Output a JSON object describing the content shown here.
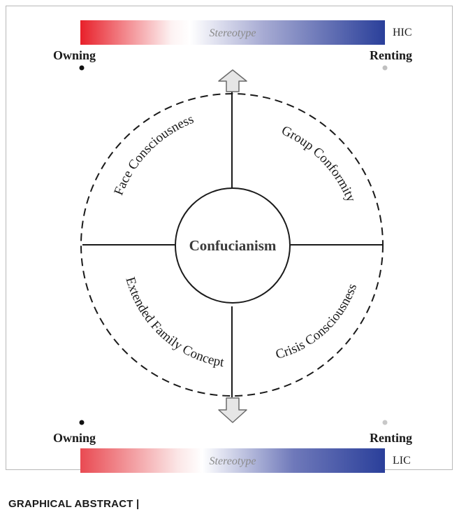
{
  "top": {
    "bar_label": "Stereotype",
    "bar_tag": "HIC",
    "left_label": "Owning",
    "right_label": "Renting"
  },
  "bottom": {
    "bar_label": "Stereotype",
    "bar_tag": "LIC",
    "left_label": "Owning",
    "right_label": "Renting"
  },
  "center_label": "Confucianism",
  "quadrants": {
    "top_left": "Face Consciousness",
    "top_right": "Group Conformity",
    "bottom_left": "Extended Family Concept",
    "bottom_right": "Crisis Consciousness"
  },
  "caption": "GRAPHICAL ABSTRACT  |",
  "colors": {
    "gradient_left": "#e8202a",
    "gradient_mid": "#ffffff",
    "gradient_right": "#2a3f9a",
    "line": "#1a1a1a",
    "arrow_fill": "#e6e6e6"
  }
}
